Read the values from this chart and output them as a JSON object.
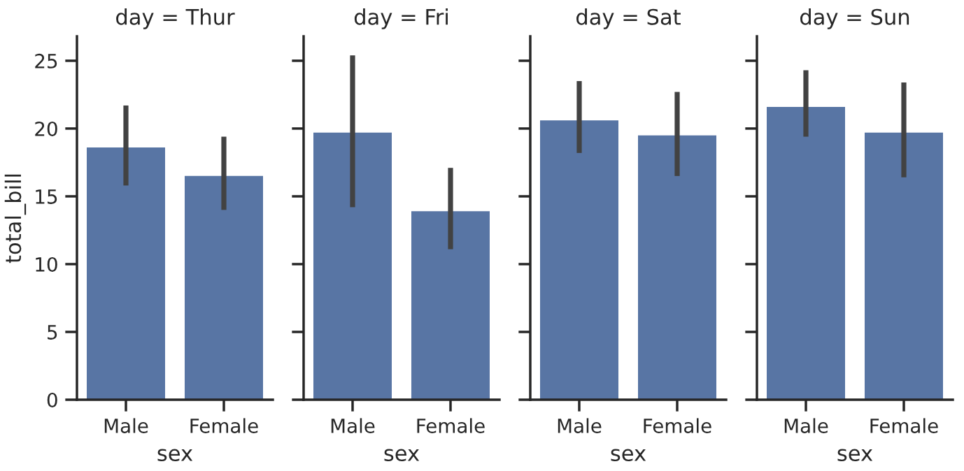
{
  "chart_data": [
    {
      "type": "bar",
      "title": "day = Thur",
      "xlabel": "sex",
      "ylabel": "total_bill",
      "categories": [
        "Male",
        "Female"
      ],
      "values": [
        18.6,
        16.5
      ],
      "errors": [
        [
          15.8,
          21.7
        ],
        [
          14.0,
          19.4
        ]
      ],
      "color": "#5875a4",
      "ylim": [
        0,
        26.8
      ],
      "yticks": [
        0,
        5,
        10,
        15,
        20,
        25
      ],
      "grid": false
    },
    {
      "type": "bar",
      "title": "day = Fri",
      "xlabel": "sex",
      "categories": [
        "Male",
        "Female"
      ],
      "values": [
        19.7,
        13.9
      ],
      "errors": [
        [
          14.2,
          25.4
        ],
        [
          11.1,
          17.1
        ]
      ],
      "color": "#5875a4",
      "ylim": [
        0,
        26.8
      ],
      "yticks": [
        0,
        5,
        10,
        15,
        20,
        25
      ],
      "tick_labels": "x",
      "grid": false
    },
    {
      "type": "bar",
      "title": "day = Sat",
      "xlabel": "sex",
      "categories": [
        "Male",
        "Female"
      ],
      "values": [
        20.6,
        19.5
      ],
      "errors": [
        [
          18.2,
          23.5
        ],
        [
          16.5,
          22.7
        ]
      ],
      "color": "#5875a4",
      "ylim": [
        0,
        26.8
      ],
      "yticks": [
        0,
        5,
        10,
        15,
        20,
        25
      ],
      "tick_labels": "x",
      "grid": false
    },
    {
      "type": "bar",
      "title": "day = Sun",
      "xlabel": "sex",
      "categories": [
        "Male",
        "Female"
      ],
      "values": [
        21.6,
        19.7
      ],
      "errors": [
        [
          19.4,
          24.3
        ],
        [
          16.4,
          23.4
        ]
      ],
      "color": "#5875a4",
      "ylim": [
        0,
        26.8
      ],
      "yticks": [
        0,
        5,
        10,
        15,
        20,
        25
      ],
      "tick_labels": "x",
      "grid": false
    }
  ]
}
